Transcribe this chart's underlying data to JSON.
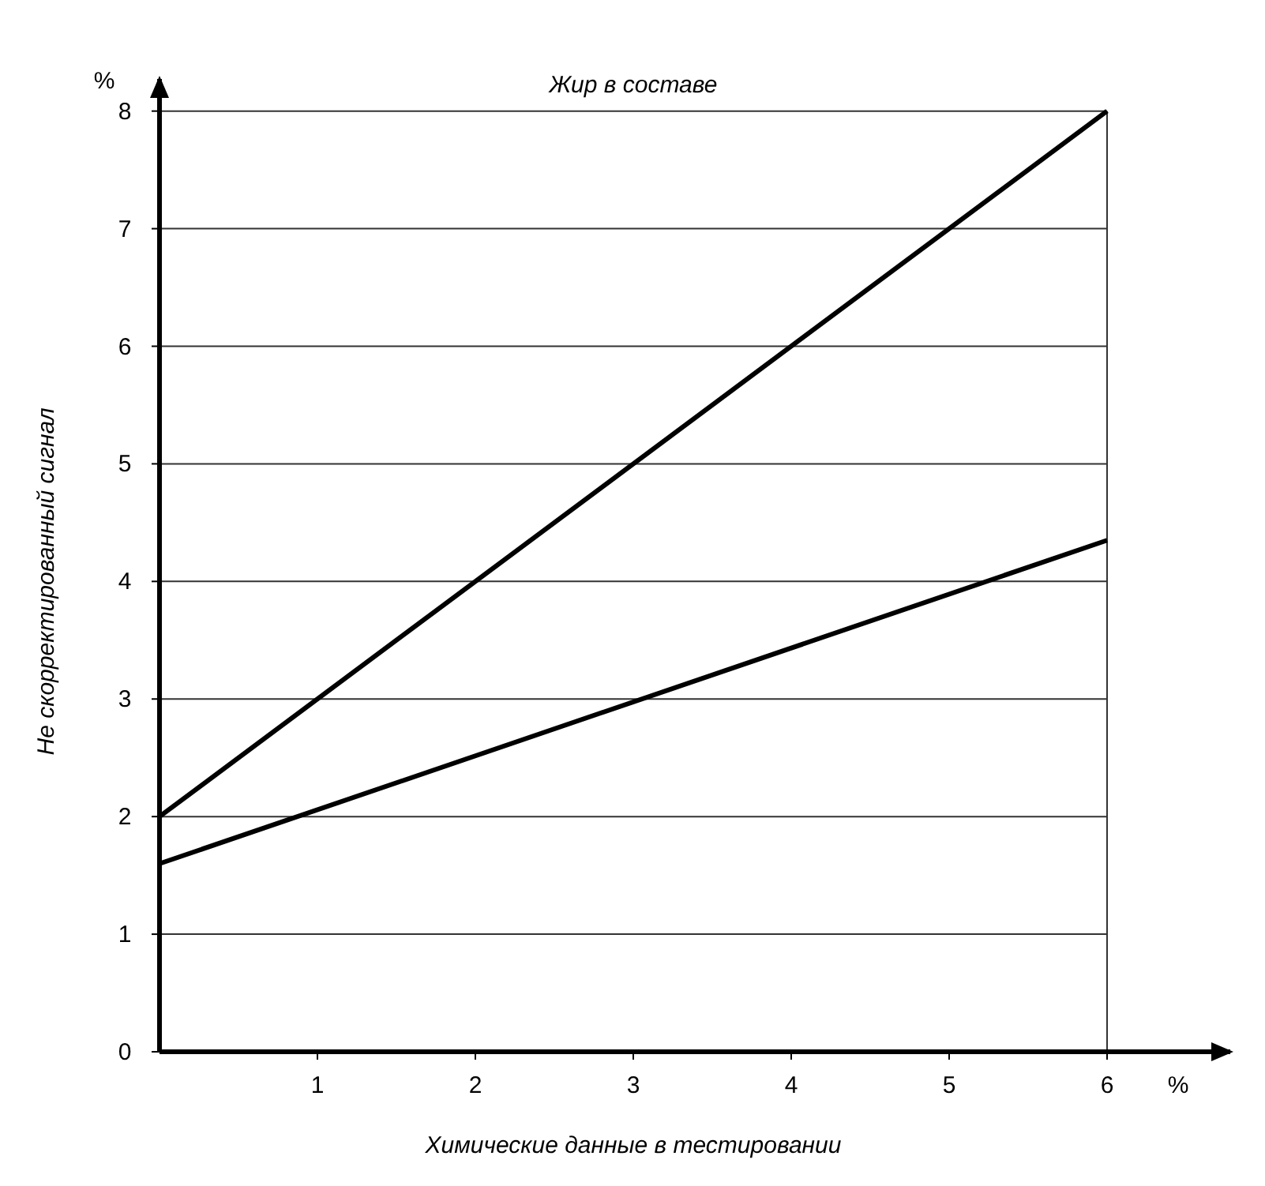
{
  "chart_data": {
    "type": "line",
    "title": "Жир в составе",
    "xlabel": "Химические данные в тестировании",
    "ylabel": "Не скорректированный сигнал",
    "annotations": [
      "%",
      "%"
    ],
    "series": [
      {
        "color": "#000000",
        "values": [
          2,
          8
        ]
      },
      {
        "color": "#000000",
        "values": [
          1.6,
          4.35
        ]
      }
    ],
    "x": [
      0,
      6
    ],
    "xlim": [
      0,
      6.8
    ],
    "ylim": [
      0,
      8.3
    ],
    "xticks": [
      1,
      2,
      3,
      4,
      5,
      6
    ],
    "yticks": [
      0,
      1,
      2,
      3,
      4,
      5,
      6,
      7,
      8
    ],
    "grid": "y",
    "ref_lines": [
      {
        "axis": "x",
        "value": 6
      }
    ],
    "marker": "none",
    "line_style": "solid"
  }
}
